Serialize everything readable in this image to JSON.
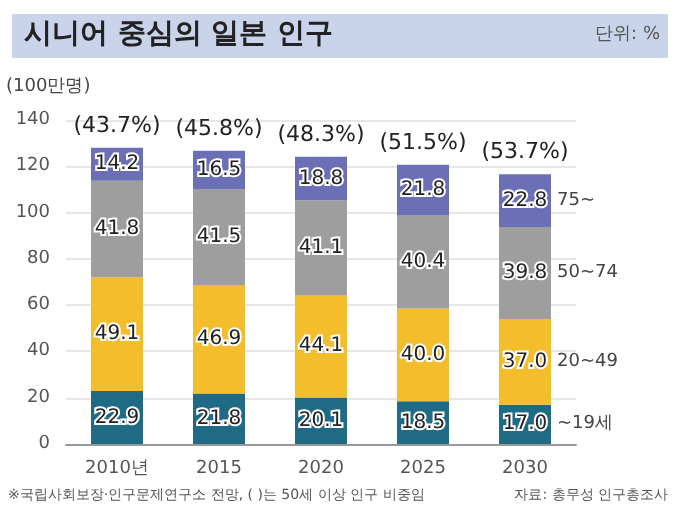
{
  "chart_data": {
    "type": "bar",
    "title": "시니어 중심의 일본 인구",
    "ylabel": "(100만명)",
    "stacked": true,
    "categories": [
      "2010년",
      "2015",
      "2020",
      "2025",
      "2030"
    ],
    "series": [
      {
        "name": "~19세",
        "color": "#1f6b85",
        "values": [
          22.9,
          21.8,
          20.1,
          18.5,
          17.0
        ],
        "value_labels": [
          "22.9",
          "21.8",
          "20.1",
          "18.5",
          "17.0"
        ]
      },
      {
        "name": "20~49",
        "color": "#f3bd2c",
        "values": [
          49.1,
          46.9,
          44.1,
          40.0,
          37.0
        ],
        "value_labels": [
          "49.1",
          "46.9",
          "44.1",
          "40.0",
          "37.0"
        ]
      },
      {
        "name": "50~74",
        "color": "#9e9e9e",
        "values": [
          41.8,
          41.5,
          41.1,
          40.4,
          39.8
        ],
        "value_labels": [
          "41.8",
          "41.5",
          "41.1",
          "40.4",
          "39.8"
        ]
      },
      {
        "name": "75~",
        "color": "#6b70b6",
        "values": [
          14.2,
          16.5,
          18.8,
          21.8,
          22.8
        ],
        "value_labels": [
          "14.2",
          "16.5",
          "18.8",
          "21.8",
          "22.8"
        ]
      }
    ],
    "ylim": [
      0,
      140
    ],
    "yticks": [
      0,
      20,
      40,
      60,
      80,
      100,
      120,
      140
    ],
    "grid": "y",
    "legend": "right",
    "annotations": [
      "단위: %",
      "※국립사회보장·인구문제연구소 전망, ( )는 50세 이상 인구 비중임",
      "자료: 총무성 인구총조사",
      {
        "text": "(43.7%)",
        "x": "2010년",
        "y": 128
      },
      {
        "text": "(45.8%)",
        "x": "2015",
        "y": 126.7
      },
      {
        "text": "(48.3%)",
        "x": "2020",
        "y": 124.1
      },
      {
        "text": "(51.5%)",
        "x": "2025",
        "y": 120.7
      },
      {
        "text": "(53.7%)",
        "x": "2030",
        "y": 116.6
      }
    ]
  }
}
